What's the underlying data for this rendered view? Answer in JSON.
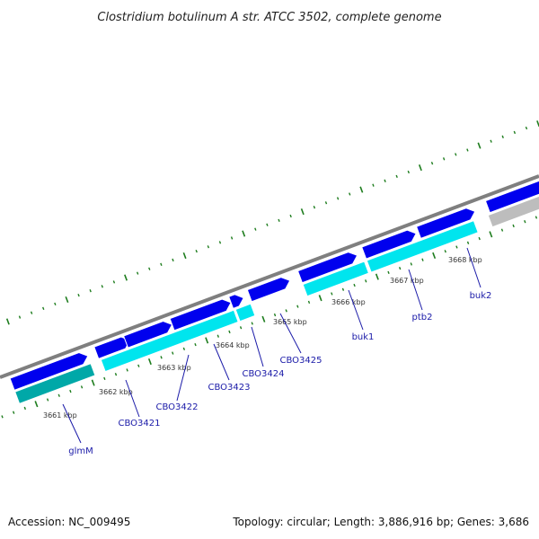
{
  "title": "Clostridium botulinum A str. ATCC 3502, complete genome",
  "footer": {
    "accession": "Accession: NC_009495",
    "summary": "Topology: circular; Length: 3,886,916 bp; Genes: 3,686"
  },
  "scale_labels": [
    "3661 kbp",
    "3662 kbp",
    "3663 kbp",
    "3664 kbp",
    "3665 kbp",
    "3666 kbp",
    "3667 kbp",
    "3668 kbp"
  ],
  "gene_labels": [
    "glmM",
    "CBO3421",
    "CBO3422",
    "CBO3423",
    "CBO3424",
    "CBO3425",
    "buk1",
    "ptb2",
    "buk2"
  ],
  "colors": {
    "backbone": "#7f7f7f",
    "feature_forward": "#0000ee",
    "feature_gene": "#00e5ee",
    "feature_dark": "#00a8a8",
    "feature_other": "#bdbdbd",
    "tick": "#1e7d1e",
    "label": "#1a1aa8"
  }
}
